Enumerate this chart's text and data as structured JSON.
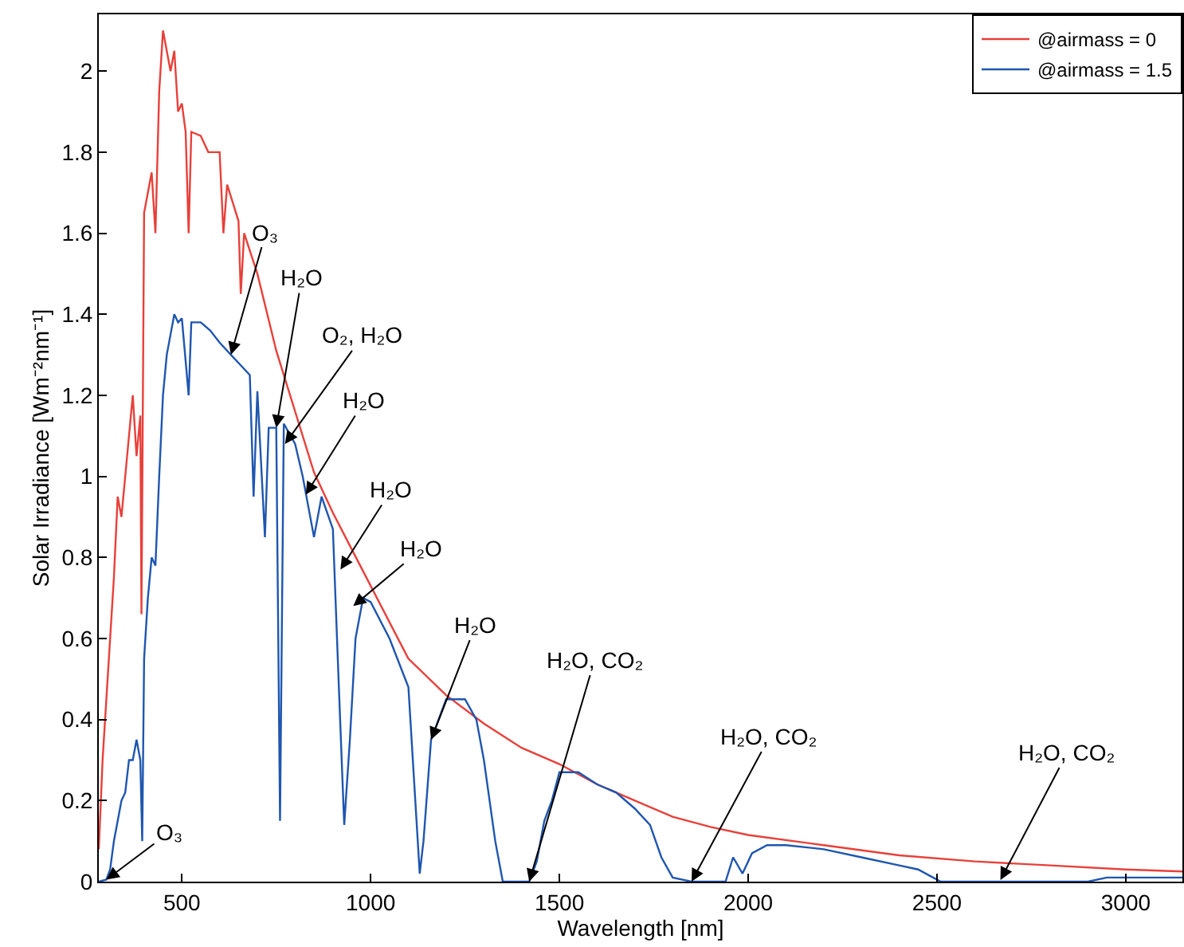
{
  "chart_data": {
    "type": "line",
    "xlabel": "Wavelength [nm]",
    "ylabel": "Solar Irradiance [Wm⁻²nm⁻¹]",
    "xlim": [
      280,
      3150
    ],
    "xticks": [
      500,
      1000,
      1500,
      2000,
      2500,
      3000
    ],
    "ylim": [
      0,
      2.14
    ],
    "yticks": [
      0,
      0.2,
      0.4,
      0.6,
      0.8,
      1,
      1.2,
      1.4,
      1.6,
      1.8,
      2
    ],
    "legend": "top right",
    "marker": "none",
    "line_style": "solid",
    "series": [
      {
        "name": "@airmass = 0",
        "color": "#e8403a",
        "x": [
          280,
          290,
          300,
          310,
          320,
          330,
          340,
          350,
          360,
          370,
          380,
          390,
          393,
          400,
          410,
          420,
          430,
          440,
          450,
          460,
          470,
          480,
          490,
          500,
          510,
          518,
          525,
          550,
          570,
          590,
          600,
          610,
          620,
          650,
          656,
          665,
          700,
          750,
          800,
          850,
          900,
          950,
          1000,
          1100,
          1200,
          1300,
          1400,
          1500,
          1600,
          1700,
          1800,
          1900,
          2000,
          2200,
          2400,
          2600,
          2800,
          3000,
          3150
        ],
        "values": [
          0.08,
          0.3,
          0.45,
          0.6,
          0.75,
          0.95,
          0.9,
          1.0,
          1.1,
          1.2,
          1.05,
          1.15,
          0.66,
          1.65,
          1.7,
          1.75,
          1.6,
          1.95,
          2.1,
          2.05,
          2.0,
          2.05,
          1.9,
          1.92,
          1.85,
          1.6,
          1.85,
          1.84,
          1.8,
          1.8,
          1.8,
          1.6,
          1.72,
          1.63,
          1.45,
          1.6,
          1.5,
          1.31,
          1.16,
          1.01,
          0.91,
          0.82,
          0.73,
          0.55,
          0.46,
          0.39,
          0.33,
          0.29,
          0.24,
          0.2,
          0.16,
          0.135,
          0.115,
          0.09,
          0.065,
          0.05,
          0.04,
          0.03,
          0.025
        ]
      },
      {
        "name": "@airmass = 1.5",
        "color": "#1f56b0",
        "x": [
          280,
          300,
          310,
          320,
          330,
          340,
          350,
          360,
          370,
          380,
          390,
          395,
          400,
          410,
          420,
          430,
          440,
          450,
          460,
          470,
          480,
          490,
          500,
          518,
          525,
          550,
          575,
          600,
          630,
          650,
          680,
          690,
          700,
          720,
          730,
          750,
          760,
          770,
          800,
          820,
          850,
          870,
          900,
          915,
          930,
          945,
          960,
          980,
          1000,
          1050,
          1100,
          1115,
          1130,
          1140,
          1160,
          1200,
          1250,
          1280,
          1300,
          1330,
          1350,
          1420,
          1440,
          1460,
          1480,
          1500,
          1550,
          1600,
          1650,
          1700,
          1740,
          1770,
          1800,
          1850,
          1940,
          1960,
          1985,
          2010,
          2050,
          2100,
          2200,
          2300,
          2400,
          2450,
          2480,
          2510,
          2900,
          2950,
          3150
        ],
        "values": [
          0,
          0.005,
          0.03,
          0.1,
          0.15,
          0.2,
          0.22,
          0.3,
          0.3,
          0.35,
          0.3,
          0.1,
          0.55,
          0.7,
          0.8,
          0.78,
          1.0,
          1.2,
          1.3,
          1.35,
          1.4,
          1.38,
          1.39,
          1.2,
          1.38,
          1.38,
          1.36,
          1.33,
          1.3,
          1.28,
          1.25,
          0.95,
          1.21,
          0.85,
          1.12,
          1.12,
          0.15,
          1.13,
          1.08,
          1.0,
          0.85,
          0.95,
          0.87,
          0.5,
          0.14,
          0.35,
          0.6,
          0.7,
          0.69,
          0.6,
          0.48,
          0.25,
          0.02,
          0.1,
          0.35,
          0.45,
          0.45,
          0.4,
          0.3,
          0.1,
          0,
          0,
          0.05,
          0.15,
          0.2,
          0.27,
          0.27,
          0.24,
          0.22,
          0.18,
          0.14,
          0.06,
          0.01,
          0,
          0,
          0.06,
          0.02,
          0.07,
          0.09,
          0.09,
          0.08,
          0.06,
          0.04,
          0.03,
          0.015,
          0,
          0,
          0.01,
          0.01
        ]
      }
    ],
    "annotations": [
      {
        "text": "O₃",
        "x": 300,
        "y": 0.005
      },
      {
        "text": "O₃",
        "x": 630,
        "y": 1.3
      },
      {
        "text": "H₂O",
        "x": 750,
        "y": 1.12
      },
      {
        "text": "O₂, H₂O",
        "x": 773,
        "y": 1.08
      },
      {
        "text": "H₂O",
        "x": 828,
        "y": 0.955
      },
      {
        "text": "H₂O",
        "x": 920,
        "y": 0.77
      },
      {
        "text": "H₂O",
        "x": 954,
        "y": 0.68
      },
      {
        "text": "H₂O",
        "x": 1160,
        "y": 0.35
      },
      {
        "text": "H₂O, CO₂",
        "x": 1420,
        "y": 0
      },
      {
        "text": "H₂O, CO₂",
        "x": 1850,
        "y": 0
      },
      {
        "text": "H₂O, CO₂",
        "x": 2668,
        "y": 0.004
      }
    ]
  }
}
